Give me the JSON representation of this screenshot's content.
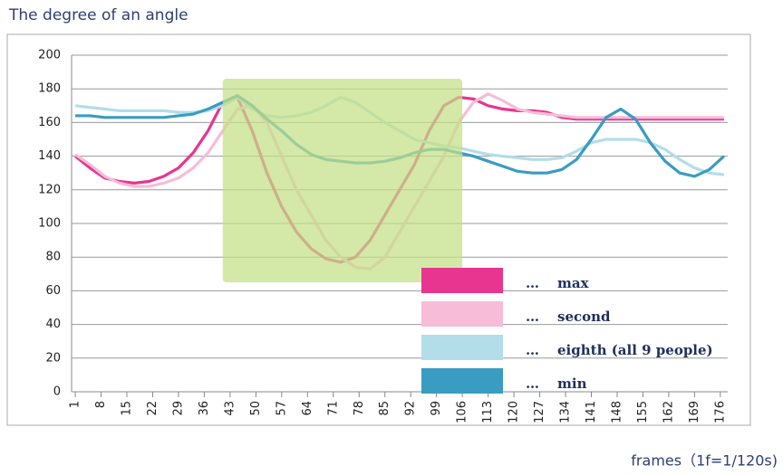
{
  "chart_data": {
    "type": "line",
    "title": "The degree of an angle",
    "x_label": "frames（1f=1/120s)",
    "x": [
      1,
      5,
      9,
      13,
      17,
      21,
      25,
      29,
      33,
      37,
      41,
      45,
      49,
      53,
      57,
      61,
      65,
      69,
      73,
      77,
      81,
      85,
      89,
      93,
      97,
      101,
      105,
      109,
      113,
      117,
      121,
      125,
      129,
      133,
      137,
      141,
      145,
      149,
      153,
      157,
      161,
      165,
      169,
      173,
      177
    ],
    "series": [
      {
        "name": "max",
        "color": "#e8358f",
        "values": [
          140,
          133,
          127,
          125,
          124,
          125,
          128,
          133,
          142,
          155,
          172,
          175,
          155,
          130,
          110,
          95,
          85,
          79,
          77,
          80,
          90,
          105,
          120,
          135,
          155,
          170,
          175,
          174,
          170,
          168,
          167,
          167,
          166,
          163,
          162,
          162,
          162,
          162,
          162,
          162,
          162,
          162,
          162,
          162,
          162
        ]
      },
      {
        "name": "second",
        "color": "#f7bcd8",
        "values": [
          141,
          135,
          128,
          124,
          122,
          122,
          124,
          127,
          133,
          142,
          155,
          168,
          170,
          160,
          140,
          120,
          105,
          90,
          80,
          74,
          73,
          80,
          95,
          110,
          125,
          140,
          160,
          172,
          177,
          173,
          168,
          166,
          165,
          164,
          163,
          163,
          163,
          163,
          163,
          163,
          163,
          163,
          163,
          163,
          163
        ]
      },
      {
        "name": "eighth  (all 9 people)",
        "color": "#b3dde9",
        "values": [
          170,
          169,
          168,
          167,
          167,
          167,
          167,
          166,
          166,
          167,
          170,
          175,
          168,
          164,
          163,
          164,
          166,
          170,
          175,
          172,
          166,
          160,
          155,
          150,
          148,
          146,
          145,
          143,
          141,
          140,
          139,
          138,
          138,
          139,
          143,
          148,
          150,
          150,
          150,
          148,
          144,
          138,
          133,
          130,
          129
        ]
      },
      {
        "name": "min",
        "color": "#3a9cc0",
        "values": [
          164,
          164,
          163,
          163,
          163,
          163,
          163,
          164,
          165,
          168,
          172,
          176,
          170,
          162,
          155,
          147,
          141,
          138,
          137,
          136,
          136,
          137,
          139,
          142,
          144,
          144,
          142,
          140,
          137,
          134,
          131,
          130,
          130,
          132,
          138,
          150,
          163,
          168,
          162,
          148,
          137,
          130,
          128,
          132,
          140
        ]
      }
    ],
    "legend_separator": "…",
    "highlight": {
      "x": [
        41,
        106
      ],
      "y": [
        65,
        186
      ],
      "color": "#c3df86"
    },
    "xlim": [
      0,
      178
    ],
    "xticks": [
      1,
      8,
      15,
      22,
      29,
      36,
      43,
      50,
      57,
      64,
      71,
      78,
      85,
      92,
      99,
      106,
      113,
      120,
      127,
      134,
      141,
      148,
      155,
      162,
      169,
      176
    ],
    "ylim": [
      0,
      200
    ],
    "yticks": [
      0,
      20,
      40,
      60,
      80,
      100,
      120,
      140,
      160,
      180,
      200
    ],
    "grid": true
  }
}
